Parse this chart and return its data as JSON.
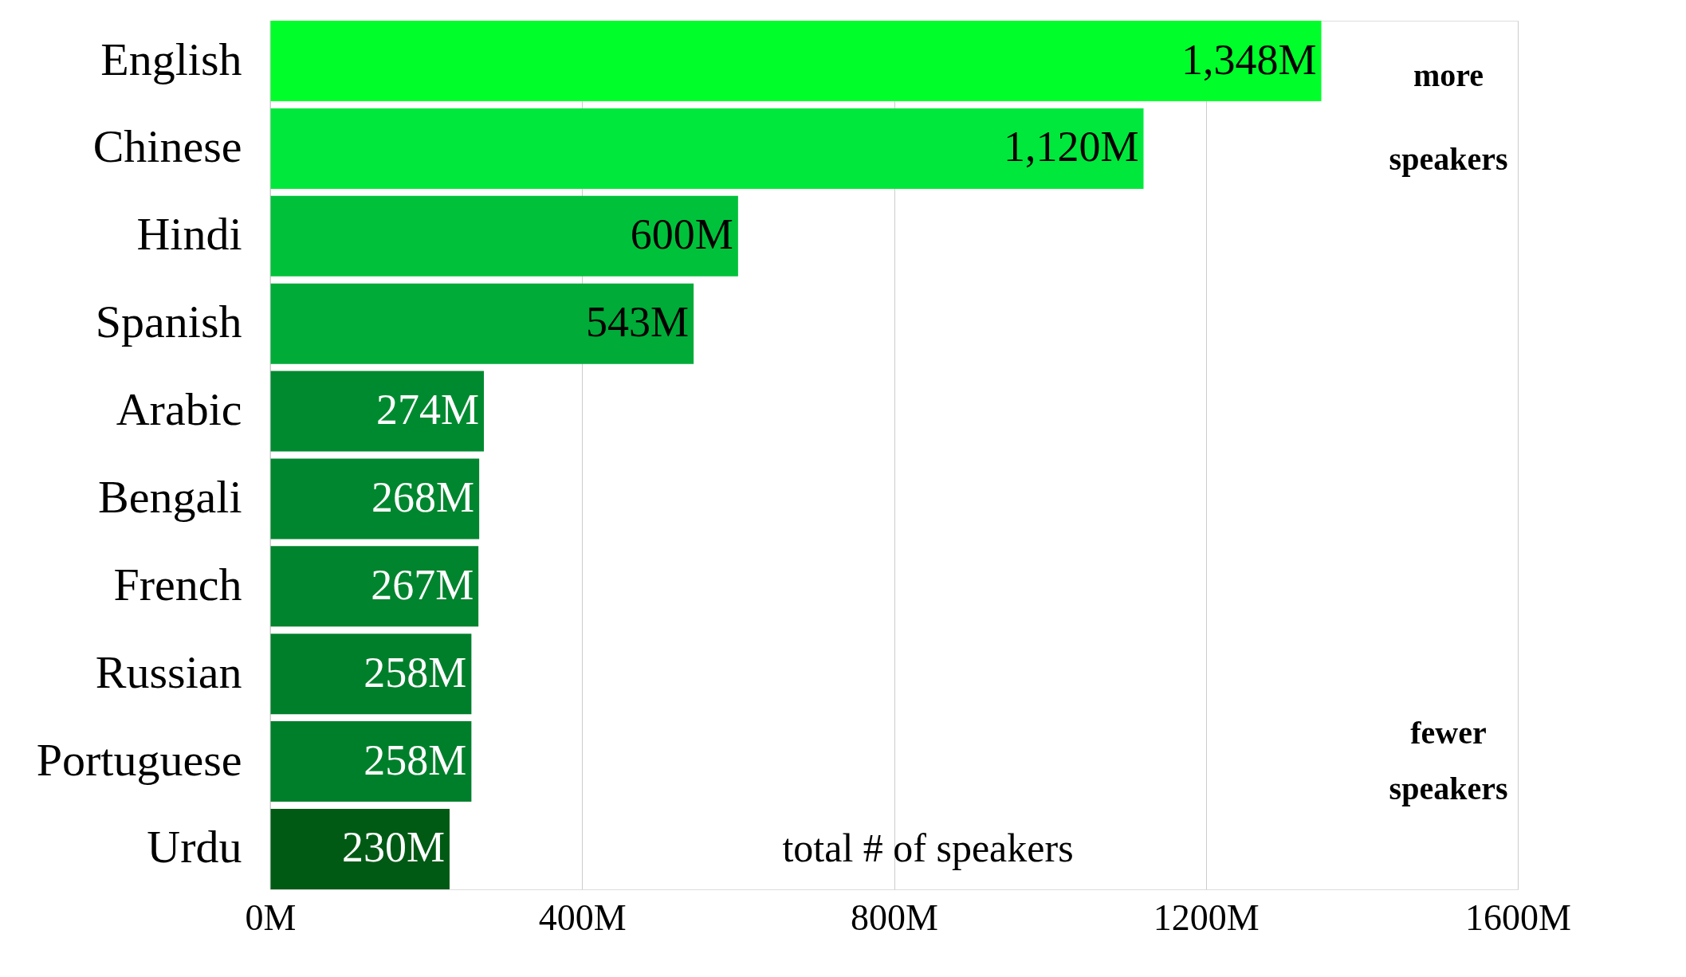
{
  "chart_data": {
    "type": "bar",
    "orientation": "horizontal",
    "xlabel": "total # of speakers",
    "categories": [
      "English",
      "Chinese",
      "Hindi",
      "Spanish",
      "Arabic",
      "Bengali",
      "French",
      "Russian",
      "Portuguese",
      "Urdu"
    ],
    "values": [
      1348,
      1120,
      600,
      543,
      274,
      268,
      267,
      258,
      258,
      230
    ],
    "value_labels": [
      "1,348M",
      "1,120M",
      "600M",
      "543M",
      "274M",
      "268M",
      "267M",
      "258M",
      "258M",
      "230M"
    ],
    "colors": [
      "#00ff2a",
      "#00e83c",
      "#00c23a",
      "#00ab38",
      "#008a30",
      "#00862e",
      "#00842d",
      "#007f2b",
      "#007f2b",
      "#005a14"
    ],
    "xlim": [
      0,
      1600
    ],
    "xticks": [
      {
        "value": 0,
        "label": "0M"
      },
      {
        "value": 400,
        "label": "400M"
      },
      {
        "value": 800,
        "label": "800M"
      },
      {
        "value": 1200,
        "label": "1200M"
      },
      {
        "value": 1600,
        "label": "1600M"
      }
    ],
    "grid": "x",
    "annotations": [
      "more speakers",
      "fewer speakers"
    ]
  }
}
